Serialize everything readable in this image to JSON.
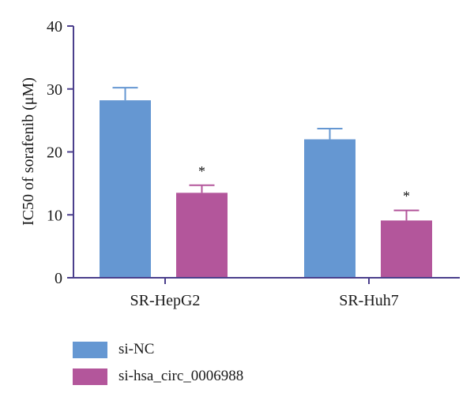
{
  "chart_data": {
    "type": "bar",
    "ylabel": "IC50 of sorafenib (μM)",
    "ylim": [
      0,
      40
    ],
    "yticks": [
      0,
      10,
      20,
      30,
      40
    ],
    "categories": [
      "SR-HepG2",
      "SR-Huh7"
    ],
    "series": [
      {
        "name": "si-NC",
        "values": [
          28.2,
          22.0
        ],
        "errors": [
          2.0,
          1.7
        ],
        "color": "#6597d2",
        "annotations": [
          "",
          ""
        ]
      },
      {
        "name": "si-hsa_circ_0006988",
        "values": [
          13.5,
          9.1
        ],
        "errors": [
          1.2,
          1.6
        ],
        "color": "#b3569b",
        "annotations": [
          "*",
          "*"
        ]
      }
    ],
    "axis_color": "#4b3f8c",
    "grid": false,
    "legend_position": "bottom-left"
  }
}
